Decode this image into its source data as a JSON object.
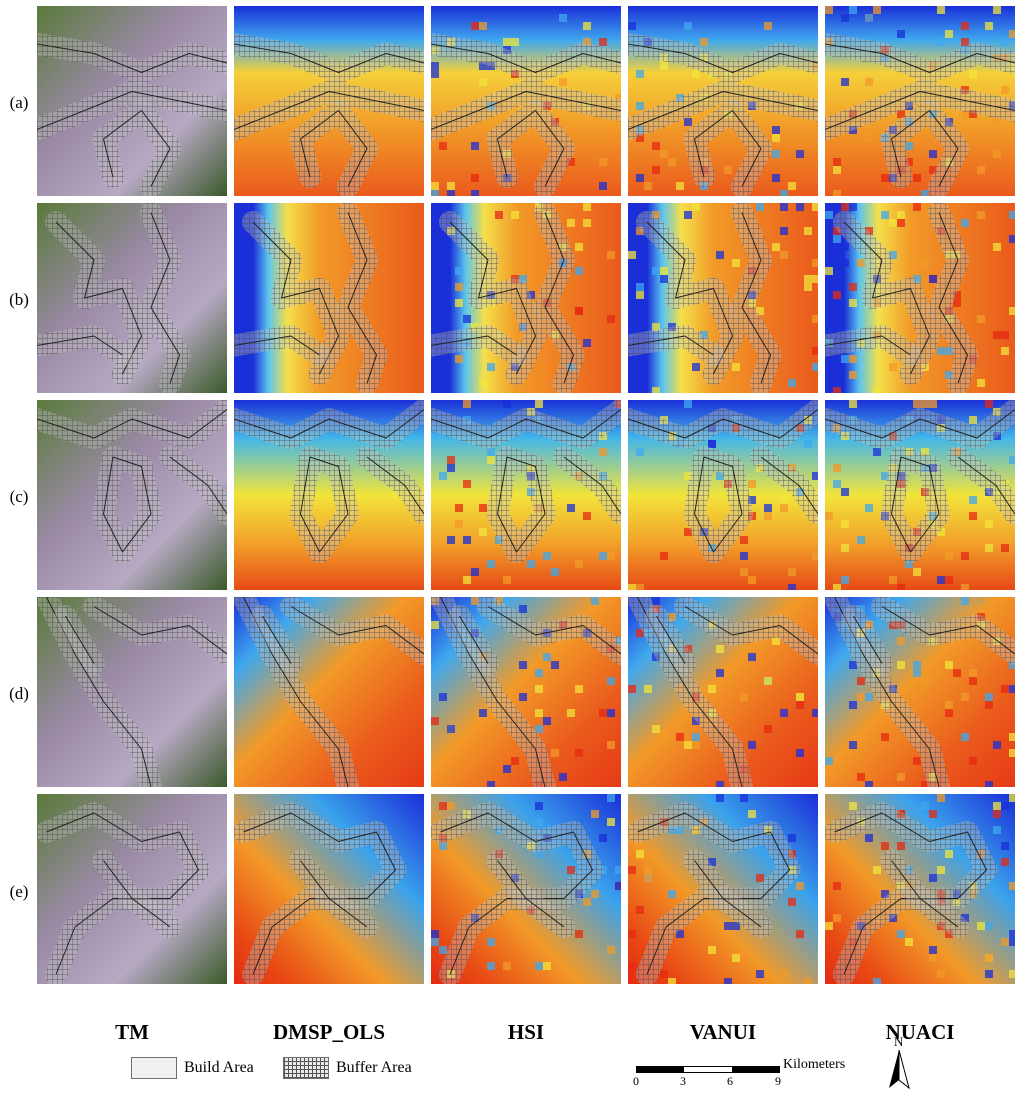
{
  "rows": [
    {
      "label": "(a)"
    },
    {
      "label": "(b)"
    },
    {
      "label": "(c)"
    },
    {
      "label": "(d)"
    },
    {
      "label": "(e)"
    }
  ],
  "columns": [
    {
      "label": "TM"
    },
    {
      "label": "DMSP_OLS"
    },
    {
      "label": "HSI"
    },
    {
      "label": "VANUI"
    },
    {
      "label": "NUACI"
    }
  ],
  "legend": {
    "build_area": "Build Area",
    "buffer_area": "Buffer Area"
  },
  "scale": {
    "unit": "Kilometers",
    "ticks": [
      "0",
      "3",
      "6",
      "9"
    ]
  },
  "north": "N",
  "colors": {
    "low": "#1a2fd8",
    "mid": "#f2e43a",
    "high": "#e52a12"
  }
}
